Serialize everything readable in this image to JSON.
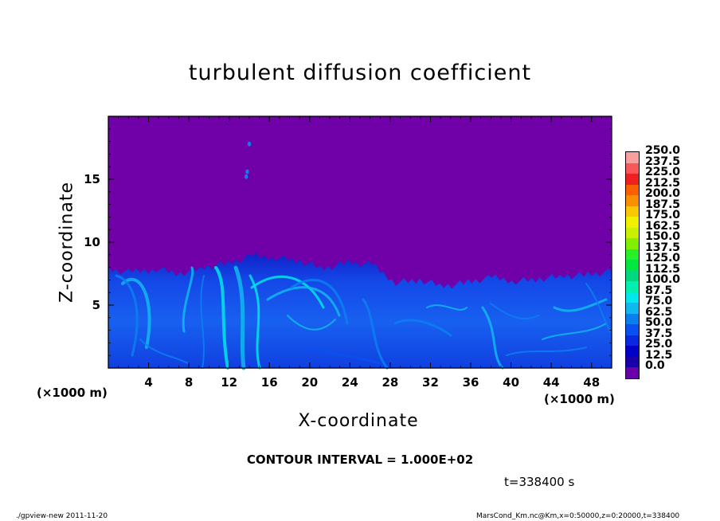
{
  "chart_data": {
    "type": "heatmap",
    "title": "turbulent diffusion coefficient",
    "xlabel": "X-coordinate",
    "ylabel": "Z-coordinate",
    "x_unit_label": "(×1000 m)",
    "x_unit_label_right": "(×1000 m)",
    "xlim": [
      0,
      50
    ],
    "ylim": [
      0,
      20
    ],
    "x_ticks": [
      4,
      8,
      12,
      16,
      20,
      24,
      28,
      32,
      36,
      40,
      44,
      48
    ],
    "y_ticks": [
      5,
      10,
      15
    ],
    "x_tick_labels": [
      "4",
      "8",
      "12",
      "16",
      "20",
      "24",
      "28",
      "32",
      "36",
      "40",
      "44",
      "48"
    ],
    "y_tick_labels": [
      "5",
      "10",
      "15"
    ],
    "colorbar_levels": [
      "0.0",
      "12.5",
      "25.0",
      "37.5",
      "50.0",
      "62.5",
      "75.0",
      "87.5",
      "100.0",
      "112.5",
      "125.0",
      "137.5",
      "150.0",
      "162.5",
      "175.0",
      "187.5",
      "200.0",
      "212.5",
      "225.0",
      "237.5",
      "250.0"
    ],
    "colorbar_colors": [
      "#6a00a8",
      "#1a00a8",
      "#0000c8",
      "#0a28e0",
      "#0a50f0",
      "#0a80f0",
      "#10b8f0",
      "#00e8e8",
      "#00f0b0",
      "#00d880",
      "#00e840",
      "#28f028",
      "#80f000",
      "#c8f000",
      "#f0f000",
      "#f8c800",
      "#f89000",
      "#f86000",
      "#f02020",
      "#f85858",
      "#f8a0a0"
    ],
    "background_value_color": "#7000a8",
    "turbulent_layer_top_km": [
      7.8,
      7.6,
      7.9,
      7.5,
      8.0,
      8.3,
      8.9,
      8.8,
      8.5,
      7.9,
      8.4,
      8.2,
      6.8,
      7.0,
      6.5,
      6.8,
      7.2,
      6.9,
      7.1,
      7.3,
      7.4,
      7.7
    ],
    "contour_interval": "CONTOUR INTERVAL = 1.000E+02",
    "time_label": "t=338400 s"
  },
  "footer": {
    "left": "./gpview-new   2011-11-20",
    "right": "MarsCond_Km.nc@Km,x=0:50000,z=0:20000,t=338400"
  }
}
